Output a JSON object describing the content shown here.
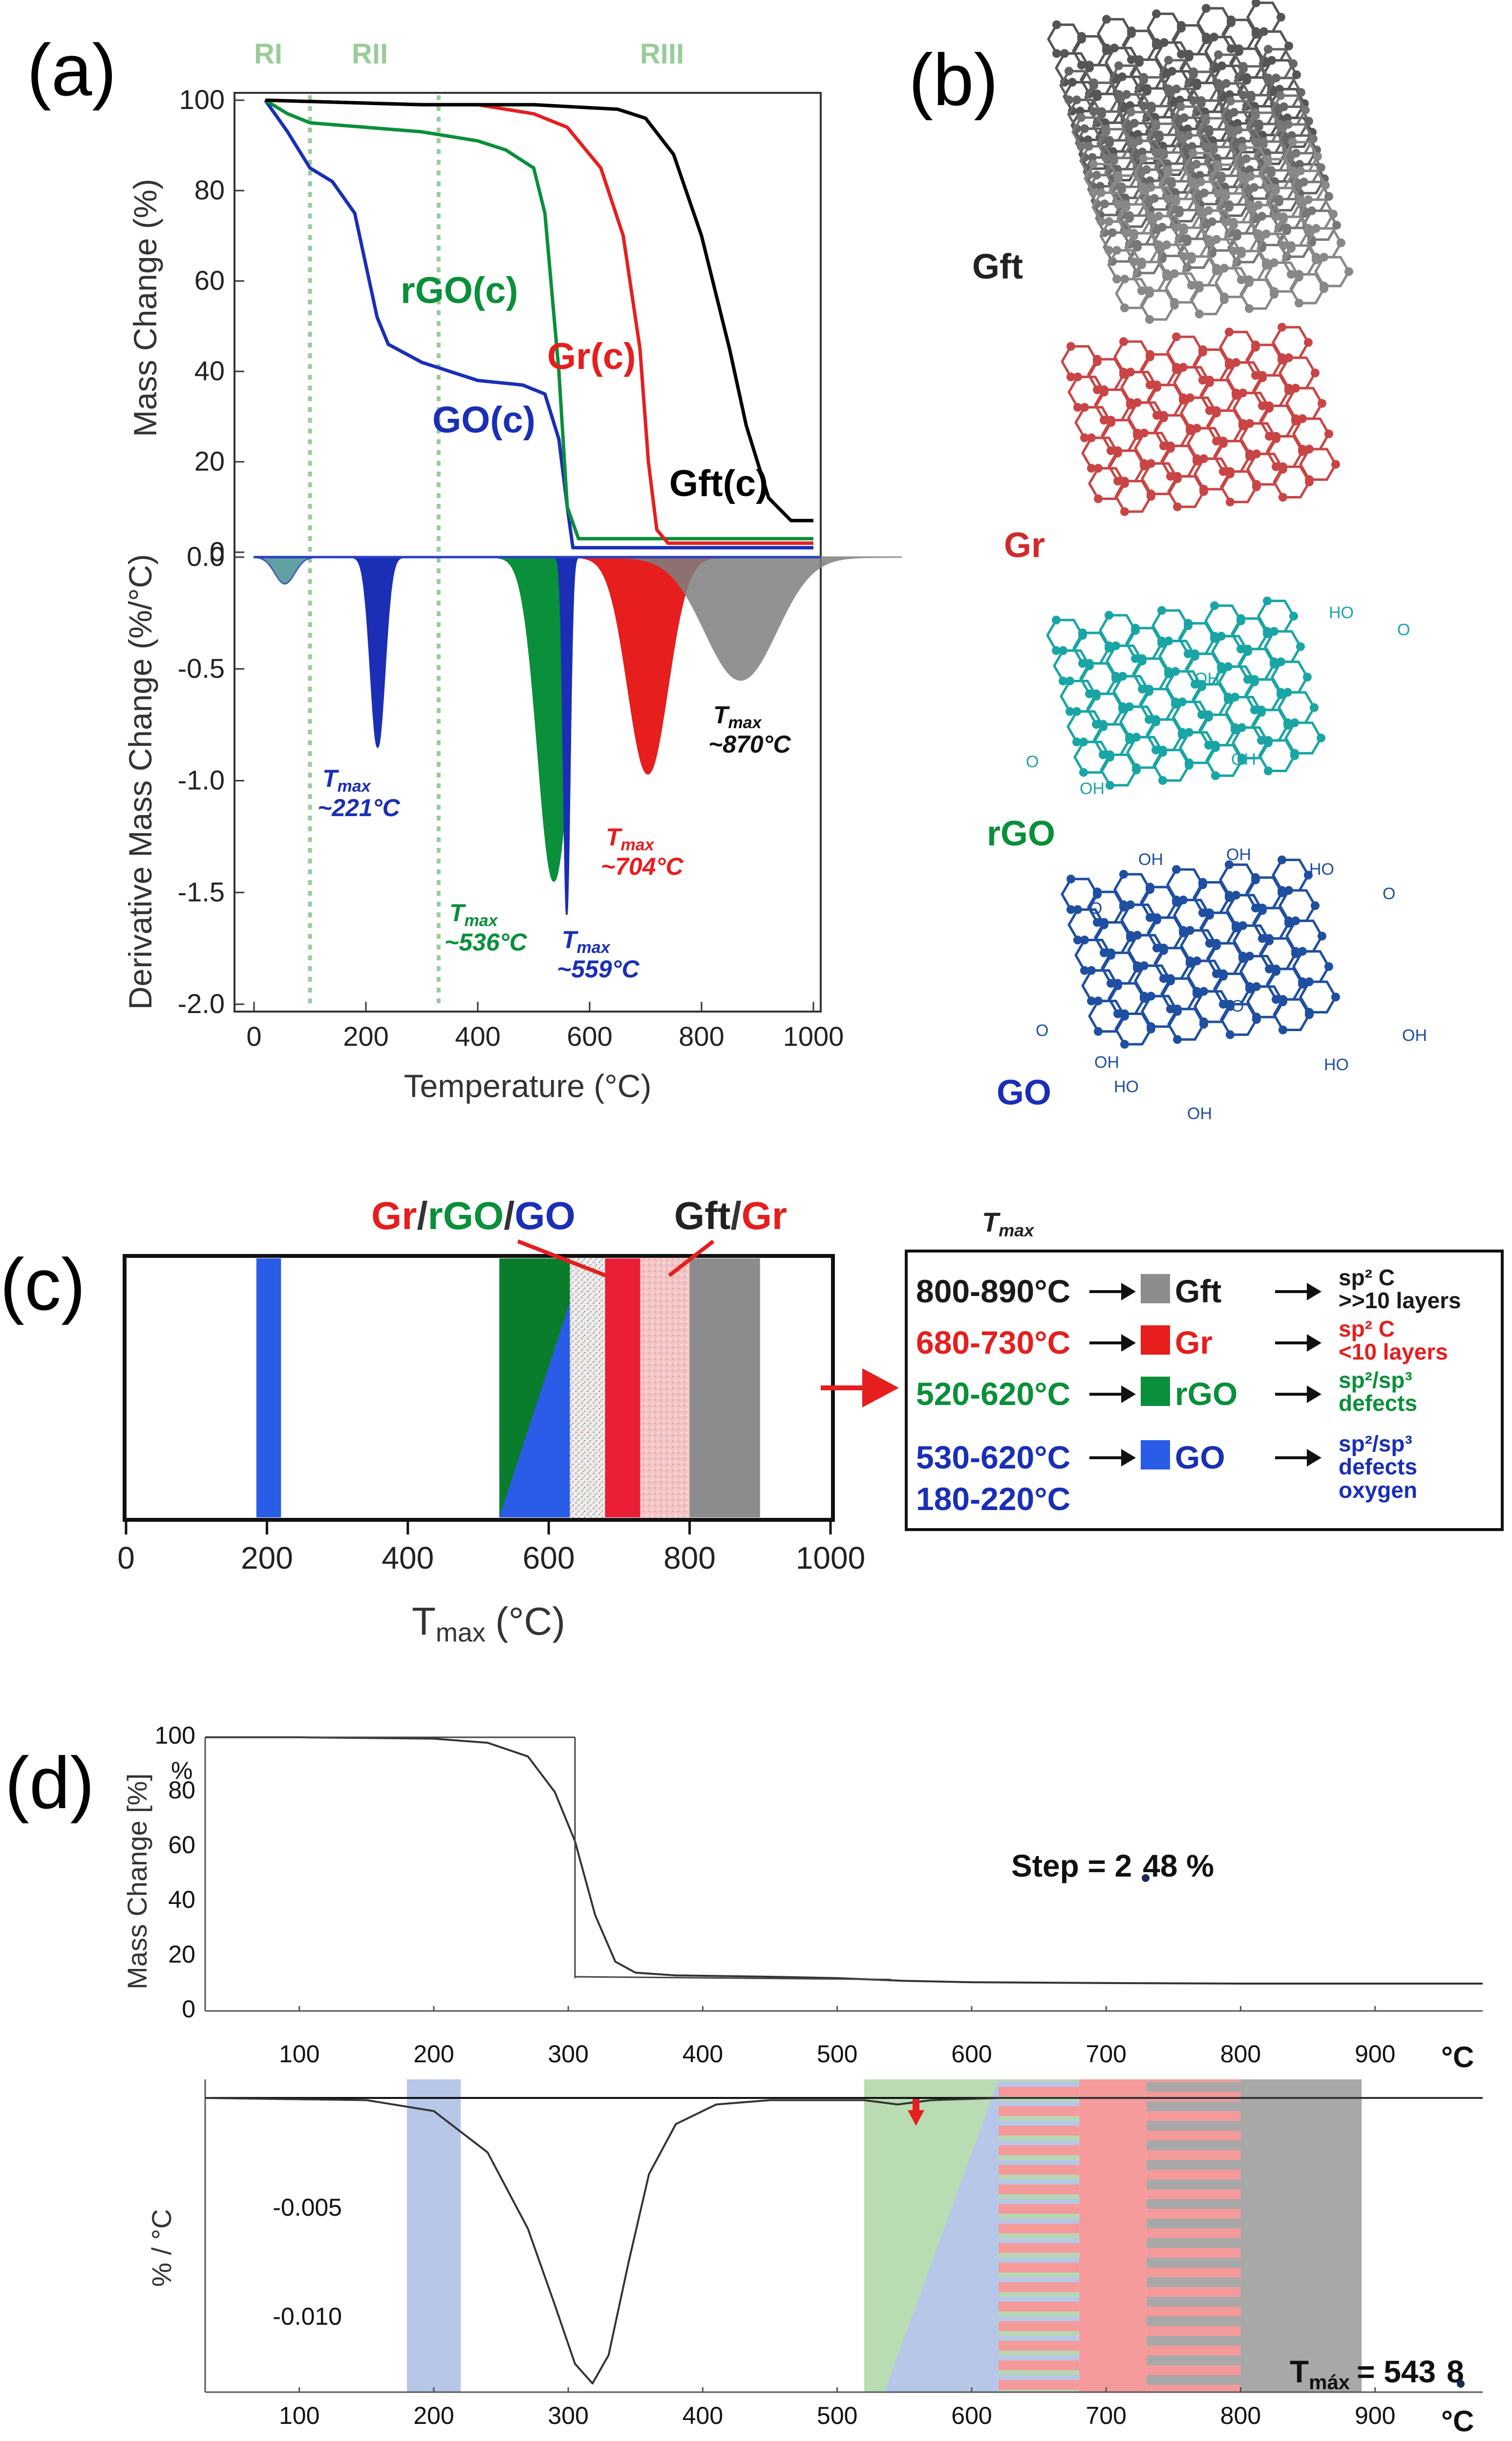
{
  "panels": {
    "a": "(a)",
    "b": "(b)",
    "c": "(c)",
    "d": "(d)"
  },
  "chart_data": [
    {
      "id": "a-top",
      "type": "line",
      "xlabel": "Temperature (°C)",
      "ylabel": "Mass Change (%)",
      "xlim": [
        0,
        1000
      ],
      "ylim": [
        0,
        100
      ],
      "yticks": [
        "0",
        "20",
        "40",
        "60",
        "80",
        "100"
      ],
      "regions": [
        "RI",
        "RII",
        "RIII"
      ],
      "region_boundaries": [
        100,
        330
      ],
      "series": [
        {
          "name": "GO(c)",
          "color": "#1a2fb5",
          "x": [
            20,
            60,
            100,
            140,
            180,
            220,
            240,
            300,
            400,
            480,
            520,
            545,
            560,
            570,
            1000
          ],
          "y": [
            100,
            93,
            85,
            82,
            75,
            52,
            46,
            42,
            38,
            37,
            35,
            25,
            10,
            1,
            1
          ]
        },
        {
          "name": "rGO(c)",
          "color": "#0a8f3a",
          "x": [
            20,
            60,
            100,
            200,
            300,
            400,
            450,
            500,
            520,
            545,
            560,
            580,
            1000
          ],
          "y": [
            100,
            97,
            95,
            94,
            93,
            91,
            89,
            85,
            75,
            40,
            10,
            3,
            3
          ]
        },
        {
          "name": "Gr(c)",
          "color": "#e61e1e",
          "x": [
            20,
            300,
            400,
            500,
            560,
            620,
            660,
            690,
            705,
            720,
            740,
            760,
            1000
          ],
          "y": [
            100,
            99,
            99,
            97,
            94,
            85,
            70,
            45,
            20,
            5,
            2,
            2,
            2
          ]
        },
        {
          "name": "Gft(c)",
          "color": "#000000",
          "x": [
            20,
            300,
            500,
            650,
            700,
            750,
            800,
            850,
            880,
            920,
            960,
            1000
          ],
          "y": [
            100,
            99,
            99,
            98,
            96,
            88,
            70,
            45,
            28,
            12,
            7,
            7
          ]
        }
      ],
      "labels": [
        "rGO(c)",
        "Gr(c)",
        "GO(c)",
        "Gft(c)"
      ]
    },
    {
      "id": "a-bottom",
      "type": "area",
      "xlabel": "Temperature (°C)",
      "ylabel": "Derivative Mass Change (%/°C)",
      "xlim": [
        0,
        1000
      ],
      "ylim": [
        -2.0,
        0.0
      ],
      "xticks": [
        "0",
        "200",
        "400",
        "600",
        "800",
        "1000"
      ],
      "yticks": [
        "0.0",
        "-0.5",
        "-1.0",
        "-1.5",
        "-2.0"
      ],
      "peaks": [
        {
          "series": "GO(c)",
          "color": "#1a2fb5",
          "x": 221,
          "y": -0.85,
          "label": "~221°C"
        },
        {
          "series": "rGO(c)",
          "color": "#0a8f3a",
          "x": 536,
          "y": -1.45,
          "label": "~536°C"
        },
        {
          "series": "GO(c)",
          "color": "#1a2fb5",
          "x": 559,
          "y": -1.6,
          "label": "~559°C"
        },
        {
          "series": "Gr(c)",
          "color": "#e61e1e",
          "x": 704,
          "y": -0.97,
          "label": "~704°C"
        },
        {
          "series": "Gft(c)",
          "color": "#7f7f7f",
          "x": 870,
          "y": -0.55,
          "label": "~870°C"
        }
      ],
      "tmax_label": "T",
      "tmax_sub": "max"
    },
    {
      "id": "c",
      "type": "bar",
      "xlabel_main": "T",
      "xlabel_sub": "max",
      "xlabel_unit": "(°C)",
      "xlim": [
        0,
        1000
      ],
      "xticks": [
        "0",
        "200",
        "400",
        "600",
        "800",
        "1000"
      ],
      "callouts": {
        "left": [
          "Gr",
          "/",
          "rGO",
          "/",
          "GO"
        ],
        "right": [
          "Gft",
          "/",
          "Gr"
        ]
      },
      "bands": [
        {
          "from": 185,
          "to": 220,
          "kind": "GO"
        },
        {
          "from": 530,
          "to": 630,
          "kind": "rGO/GO"
        },
        {
          "from": 630,
          "to": 680,
          "kind": "speckle"
        },
        {
          "from": 680,
          "to": 730,
          "kind": "Gr"
        },
        {
          "from": 730,
          "to": 800,
          "kind": "Gr-light"
        },
        {
          "from": 800,
          "to": 900,
          "kind": "Gft"
        }
      ],
      "legend_title_main": "T",
      "legend_title_sub": "max",
      "legend": [
        {
          "range": "800-890°C",
          "name": "Gft",
          "color": "#1a1a1a",
          "swatch": "#8c8c8c",
          "desc1": "sp² C",
          "desc2": ">>10 layers"
        },
        {
          "range": "680-730°C",
          "name": "Gr",
          "color": "#e61e1e",
          "swatch": "#e61e1e",
          "desc1": "sp² C",
          "desc2": "<10 layers"
        },
        {
          "range": "520-620°C",
          "name": "rGO",
          "color": "#0a8f3a",
          "swatch": "#0a8f3a",
          "desc1": "sp²/sp³",
          "desc2": "defects"
        },
        {
          "range": "530-620°C",
          "range2": "180-220°C",
          "name": "GO",
          "color": "#1a2fb5",
          "swatch": "#2a5ce8",
          "desc1": "sp²/sp³",
          "desc2": "defects",
          "desc3": "oxygen"
        }
      ]
    },
    {
      "id": "d-top",
      "type": "line",
      "ylabel": "Mass Change  [%]",
      "yunit": "%",
      "xunit": "°C",
      "xlim": [
        30,
        980
      ],
      "ylim": [
        0,
        100
      ],
      "yticks": [
        "100",
        "80",
        "60",
        "40",
        "20",
        "0"
      ],
      "xticks": [
        "100",
        "200",
        "300",
        "400",
        "500",
        "600",
        "700",
        "800",
        "900"
      ],
      "x": [
        30,
        100,
        200,
        240,
        270,
        290,
        305,
        320,
        335,
        350,
        380,
        450,
        500,
        550,
        600,
        700,
        800,
        980
      ],
      "y": [
        100,
        100,
        99.5,
        98,
        93,
        80,
        62,
        35,
        18,
        14,
        13,
        12.5,
        12,
        11,
        10.5,
        10.2,
        10,
        10
      ],
      "step_label": "Step = 2",
      "step_value": "48 %"
    },
    {
      "id": "d-bottom",
      "type": "line",
      "ylabel": "% / °C",
      "xunit": "°C",
      "xlim": [
        30,
        980
      ],
      "ylim": [
        -0.0135,
        0.0
      ],
      "yticks": [
        "-0.005",
        "-0.010"
      ],
      "xticks": [
        "100",
        "200",
        "300",
        "400",
        "500",
        "600",
        "700",
        "800",
        "900"
      ],
      "x": [
        30,
        150,
        200,
        240,
        270,
        290,
        305,
        318,
        330,
        345,
        360,
        380,
        410,
        450,
        520,
        545,
        570,
        620,
        980
      ],
      "y": [
        0,
        -0.0001,
        -0.0006,
        -0.0025,
        -0.006,
        -0.0095,
        -0.0122,
        -0.0131,
        -0.0118,
        -0.0075,
        -0.0035,
        -0.0012,
        -0.0003,
        -0.0001,
        -0.0001,
        -0.0003,
        -0.0001,
        0,
        0
      ],
      "tmax_main": "T",
      "tmax_sub": "máx",
      "tmax_value1": "= 543",
      "tmax_value2": "8"
    }
  ],
  "molecules": {
    "gft": "Gft",
    "gr": "Gr",
    "rgo": "rGO",
    "go": "GO",
    "oh": "OH",
    "ho": "HO",
    "o": "O",
    "c": "C"
  },
  "colors": {
    "go": "#1a2fb5",
    "rgo": "#0a8f3a",
    "gr": "#e61e1e",
    "gft": "#000000",
    "gft_fill": "#8c8c8c",
    "region": "#99cc99",
    "rgo_mol": "#1aa5a5",
    "go_mol": "#1f4fa0"
  }
}
